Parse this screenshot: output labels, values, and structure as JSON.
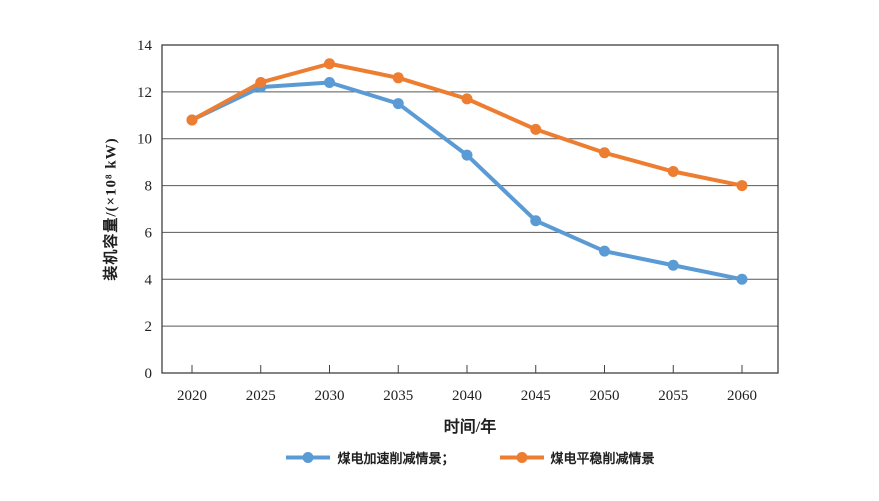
{
  "figure": {
    "background": "#ffffff"
  },
  "chart_data": {
    "type": "line",
    "title": "",
    "xlabel": "时间/年",
    "ylabel": "装机容量/(×10⁸ kW)",
    "categories": [
      "2020",
      "2025",
      "2030",
      "2035",
      "2040",
      "2045",
      "2050",
      "2055",
      "2060"
    ],
    "ylim": [
      0,
      14
    ],
    "yticks": [
      0,
      2,
      4,
      6,
      8,
      10,
      12,
      14
    ],
    "grid": "horizontal",
    "plot_border": true,
    "legend_position": "bottom-center",
    "series": [
      {
        "name": "煤电加速削减情景",
        "legend_label": "煤电加速削减情景；",
        "color": "#5B9BD5",
        "marker": "circle",
        "values": [
          10.8,
          12.2,
          12.4,
          11.5,
          9.3,
          6.5,
          5.2,
          4.6,
          4.0
        ]
      },
      {
        "name": "煤电平稳削减情景",
        "legend_label": "煤电平稳削减情景",
        "color": "#ED7D31",
        "marker": "circle",
        "values": [
          10.8,
          12.4,
          13.2,
          12.6,
          11.7,
          10.4,
          9.4,
          8.6,
          8.0
        ]
      }
    ],
    "colors": {
      "gridline": "#595959",
      "axis": "#404040",
      "text": "#1f1f1f"
    }
  }
}
